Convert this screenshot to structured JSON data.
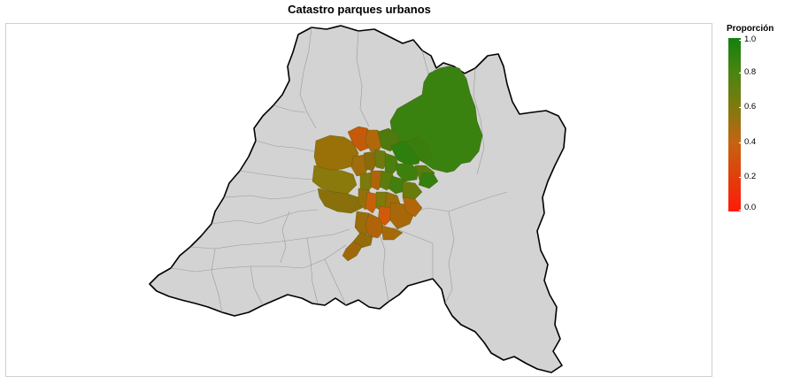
{
  "title": "Catastro parques urbanos",
  "legend": {
    "title": "Proporción",
    "ticks": [
      {
        "value": 1.0,
        "label": "1.0"
      },
      {
        "value": 0.8,
        "label": "0.8"
      },
      {
        "value": 0.6,
        "label": "0.6"
      },
      {
        "value": 0.4,
        "label": "0.4"
      },
      {
        "value": 0.2,
        "label": "0.2"
      },
      {
        "value": 0.0,
        "label": "0.0"
      }
    ],
    "color_low": "#ff1a0a",
    "color_mid": "#7f7a0f",
    "color_high": "#13800e"
  },
  "map": {
    "region_fill": "#d3d3d3",
    "region_outline": "#000000",
    "commune_border": "#9a9a9a",
    "panel_border": "#cfcfcf"
  }
}
